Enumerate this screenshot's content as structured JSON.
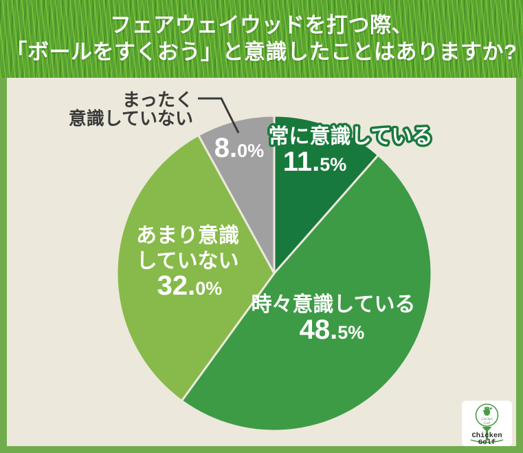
{
  "header": {
    "title_line1": "フェアウェイウッドを打つ際、",
    "title_line2": "「ボールをすくおう」と意識したことはありますか?"
  },
  "chart_data": {
    "type": "pie",
    "title": "フェアウェイウッドを打つ際、「ボールをすくおう」と意識したことはありますか?",
    "start_angle_deg": 0,
    "direction": "clockwise",
    "unit": "%",
    "total": 100,
    "legend": "none",
    "labels_on_chart": true,
    "segments": [
      {
        "label": "常に意識している",
        "value": 11.5,
        "pct_main": "11.",
        "pct_sub": "5%",
        "color": "#18793c"
      },
      {
        "label": "時々意識している",
        "value": 48.5,
        "pct_main": "48.",
        "pct_sub": "5%",
        "color": "#3d9b46"
      },
      {
        "label": "あまり意識していない",
        "label_lines": [
          "あまり意識",
          "していない"
        ],
        "value": 32.0,
        "pct_main": "32.",
        "pct_sub": "0%",
        "color": "#87ba4a"
      },
      {
        "label": "まったく意識していない",
        "label_lines": [
          "まったく",
          "意識していない"
        ],
        "value": 8.0,
        "pct_main": "8.",
        "pct_sub": "0%",
        "color": "#a0a0a0"
      }
    ]
  },
  "logo": {
    "brand_line1": "Chicken",
    "brand_line2": "Golf",
    "script_line1": "Chicken",
    "script_line2": "Golf"
  },
  "colors": {
    "frame": "#70ac4b",
    "background": "#ece8dc",
    "label_dark": "#3a3a3a",
    "title_text": "#ffffff"
  }
}
